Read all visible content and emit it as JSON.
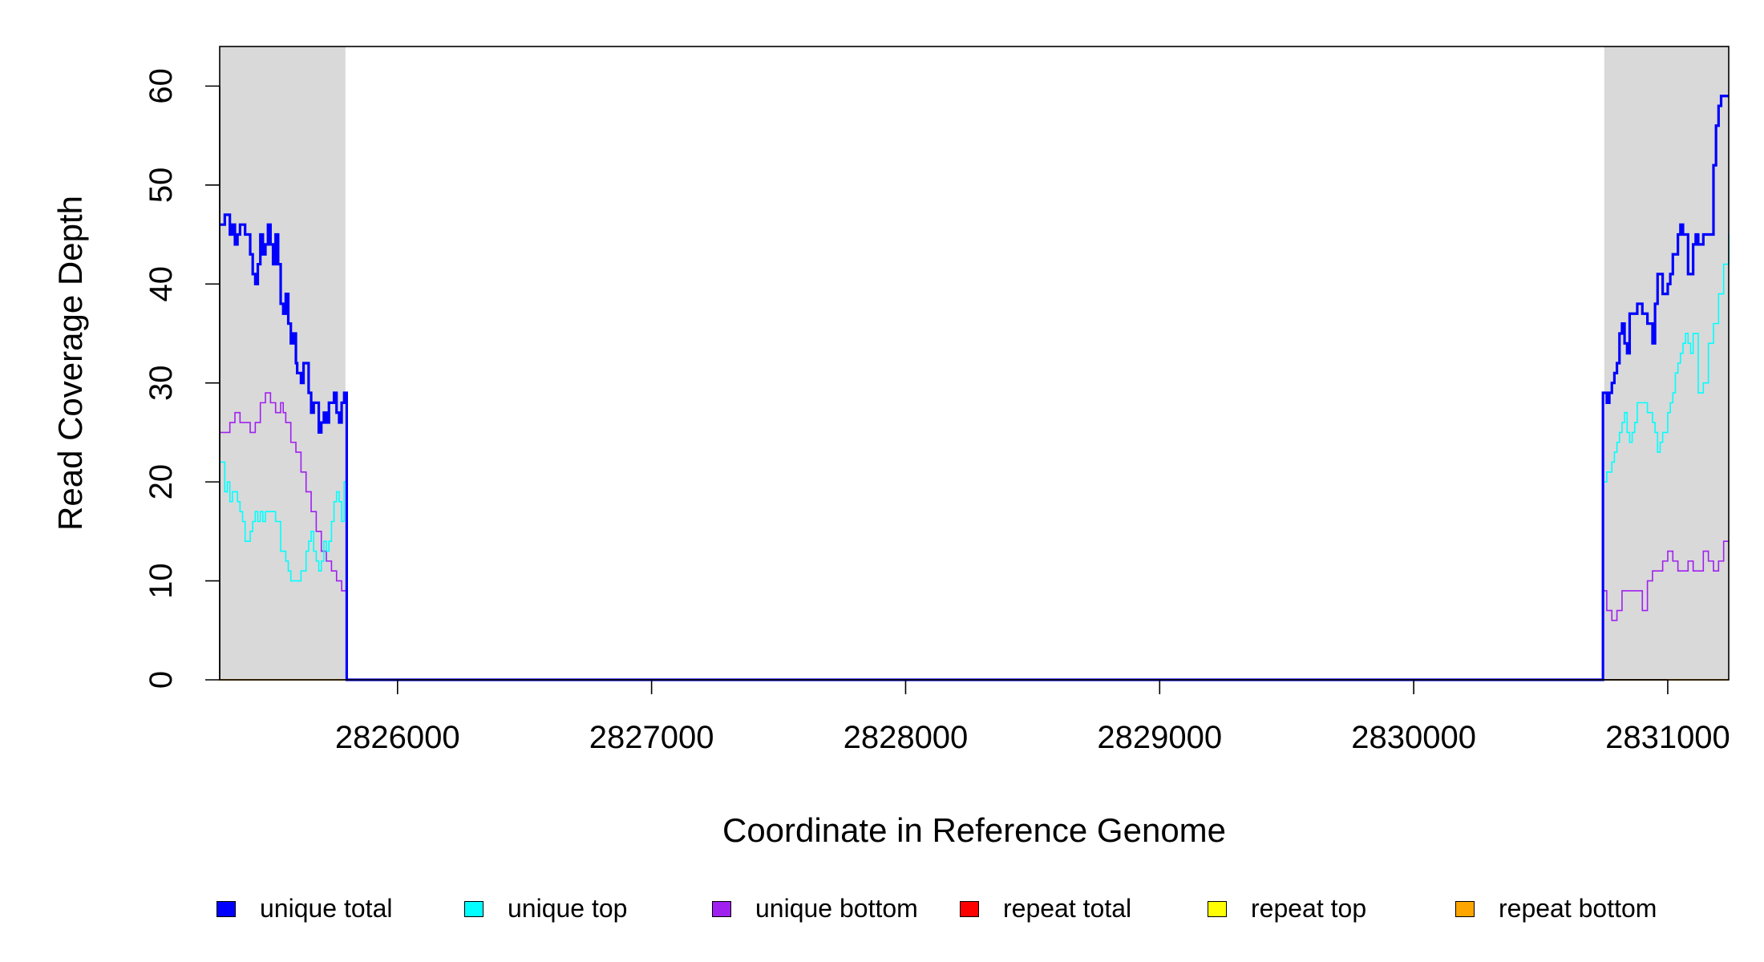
{
  "chart_data": {
    "type": "line",
    "title": "",
    "xlabel": "Coordinate in Reference Genome",
    "ylabel": "Read Coverage Depth",
    "xlim": [
      2825300,
      2831240
    ],
    "ylim": [
      0,
      64
    ],
    "x_ticks": [
      2826000,
      2827000,
      2828000,
      2829000,
      2830000,
      2831000
    ],
    "y_ticks": [
      0,
      10,
      20,
      30,
      40,
      50,
      60
    ],
    "shaded_regions": [
      [
        2825300,
        2825795
      ],
      [
        2830750,
        2831240
      ]
    ],
    "shade_color": "#d9d9d9",
    "legend_position": "bottom",
    "series": [
      {
        "name": "unique total",
        "color": "#0000ff",
        "x": [
          2825300,
          2825320,
          2825340,
          2825350,
          2825360,
          2825370,
          2825380,
          2825400,
          2825420,
          2825430,
          2825440,
          2825450,
          2825460,
          2825470,
          2825480,
          2825490,
          2825500,
          2825510,
          2825520,
          2825530,
          2825540,
          2825550,
          2825560,
          2825570,
          2825580,
          2825590,
          2825600,
          2825605,
          2825610,
          2825620,
          2825630,
          2825640,
          2825650,
          2825660,
          2825670,
          2825690,
          2825700,
          2825710,
          2825720,
          2825730,
          2825740,
          2825750,
          2825760,
          2825770,
          2825780,
          2825790,
          2825795,
          2825800,
          2830740,
          2830745,
          2830760,
          2830770,
          2830780,
          2830790,
          2830800,
          2830810,
          2830820,
          2830830,
          2830840,
          2830850,
          2830860,
          2830880,
          2830900,
          2830920,
          2830940,
          2830950,
          2830960,
          2830980,
          2831000,
          2831010,
          2831020,
          2831040,
          2831050,
          2831060,
          2831080,
          2831100,
          2831110,
          2831120,
          2831140,
          2831180,
          2831190,
          2831200,
          2831210,
          2831230,
          2831240
        ],
        "y": [
          46,
          47,
          45,
          46,
          44,
          45,
          46,
          45,
          43,
          41,
          40,
          42,
          45,
          43,
          44,
          46,
          44,
          42,
          45,
          42,
          38,
          37,
          39,
          36,
          34,
          35,
          32,
          31,
          31,
          30,
          32,
          32,
          29,
          27,
          28,
          25,
          26,
          27,
          26,
          28,
          28,
          29,
          27,
          26,
          28,
          29,
          29,
          0,
          0,
          29,
          28,
          29,
          30,
          31,
          32,
          35,
          36,
          34,
          33,
          37,
          37,
          38,
          37,
          36,
          34,
          38,
          41,
          39,
          40,
          41,
          43,
          45,
          46,
          45,
          41,
          44,
          45,
          44,
          45,
          52,
          56,
          58,
          59,
          59,
          59
        ]
      },
      {
        "name": "unique top",
        "color": "#00ffff",
        "x": [
          2825300,
          2825320,
          2825330,
          2825340,
          2825350,
          2825370,
          2825380,
          2825390,
          2825400,
          2825420,
          2825430,
          2825440,
          2825450,
          2825460,
          2825470,
          2825480,
          2825500,
          2825520,
          2825540,
          2825560,
          2825570,
          2825580,
          2825590,
          2825600,
          2825620,
          2825640,
          2825650,
          2825660,
          2825670,
          2825680,
          2825690,
          2825700,
          2825710,
          2825720,
          2825730,
          2825740,
          2825750,
          2825760,
          2825770,
          2825780,
          2825790,
          2825795,
          2825800,
          2830740,
          2830745,
          2830760,
          2830780,
          2830790,
          2830800,
          2830810,
          2830820,
          2830830,
          2830840,
          2830850,
          2830860,
          2830870,
          2830880,
          2830900,
          2830920,
          2830940,
          2830950,
          2830960,
          2830970,
          2830980,
          2831000,
          2831010,
          2831020,
          2831030,
          2831040,
          2831050,
          2831060,
          2831070,
          2831080,
          2831090,
          2831100,
          2831120,
          2831140,
          2831160,
          2831180,
          2831200,
          2831220,
          2831240
        ],
        "y": [
          22,
          19,
          20,
          18,
          19,
          18,
          17,
          16,
          14,
          15,
          16,
          17,
          16,
          17,
          16,
          17,
          17,
          16,
          13,
          12,
          11,
          10,
          10,
          10,
          11,
          13,
          14,
          15,
          13,
          12,
          11,
          12,
          14,
          13,
          14,
          16,
          18,
          19,
          18,
          16,
          20,
          20,
          0,
          0,
          20,
          21,
          22,
          23,
          24,
          25,
          26,
          27,
          25,
          24,
          25,
          26,
          28,
          28,
          27,
          26,
          25,
          23,
          24,
          25,
          27,
          28,
          29,
          31,
          32,
          33,
          34,
          35,
          34,
          33,
          35,
          29,
          30,
          34,
          36,
          39,
          42,
          45
        ]
      },
      {
        "name": "unique bottom",
        "color": "#a020f0",
        "x": [
          2825300,
          2825320,
          2825340,
          2825360,
          2825380,
          2825400,
          2825420,
          2825440,
          2825460,
          2825480,
          2825500,
          2825520,
          2825540,
          2825550,
          2825560,
          2825580,
          2825600,
          2825620,
          2825640,
          2825660,
          2825680,
          2825700,
          2825720,
          2825740,
          2825760,
          2825780,
          2825795,
          2825800,
          2830740,
          2830745,
          2830760,
          2830780,
          2830800,
          2830820,
          2830860,
          2830880,
          2830900,
          2830920,
          2830940,
          2830960,
          2830980,
          2831000,
          2831020,
          2831040,
          2831060,
          2831080,
          2831100,
          2831120,
          2831140,
          2831160,
          2831180,
          2831200,
          2831220,
          2831240
        ],
        "y": [
          25,
          25,
          26,
          27,
          26,
          26,
          25,
          26,
          28,
          29,
          28,
          27,
          28,
          27,
          26,
          24,
          23,
          21,
          19,
          17,
          15,
          13,
          12,
          11,
          10,
          9,
          9,
          0,
          0,
          9,
          7,
          6,
          7,
          9,
          9,
          9,
          7,
          10,
          11,
          11,
          12,
          13,
          12,
          11,
          11,
          12,
          11,
          11,
          13,
          12,
          11,
          12,
          14,
          14
        ]
      },
      {
        "name": "repeat total",
        "color": "#ff0000",
        "x": [
          2825300,
          2831240
        ],
        "y": [
          0,
          0
        ]
      },
      {
        "name": "repeat top",
        "color": "#ffff00",
        "x": [
          2825300,
          2831240
        ],
        "y": [
          0,
          0
        ]
      },
      {
        "name": "repeat bottom",
        "color": "#ffa500",
        "x": [
          2825300,
          2831240
        ],
        "y": [
          0,
          0
        ]
      }
    ]
  }
}
